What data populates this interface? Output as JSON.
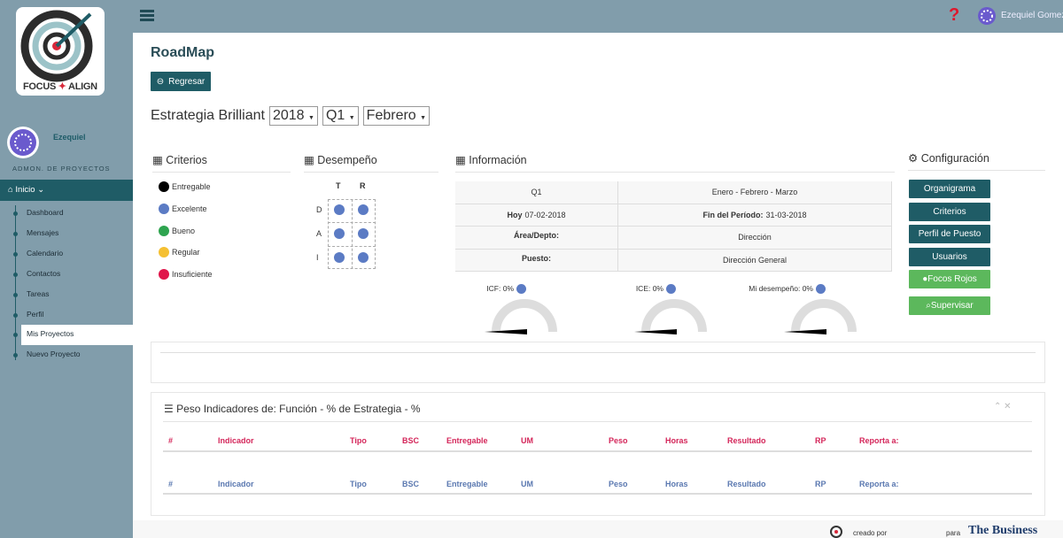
{
  "brand": {
    "left": "FOCUS",
    "right": "ALIGN"
  },
  "topbar": {
    "user": "Ezequiel Gomez"
  },
  "sidebar": {
    "user": "Ezequiel",
    "role": "ADMON. DE PROYECTOS",
    "section": "Inicio",
    "menu": [
      "Dashboard",
      "Mensajes",
      "Calendario",
      "Contactos",
      "Tareas",
      "Perfil",
      "Mis Proyectos",
      "Nuevo Proyecto"
    ],
    "active": 6
  },
  "page": {
    "title": "RoadMap",
    "back": "Regresar",
    "strategy": "Estrategia Brilliant",
    "year": "2018",
    "quarter": "Q1",
    "month": "Febrero"
  },
  "criterios": {
    "title": "Criterios",
    "items": [
      {
        "label": "Entregable",
        "color": "#000000"
      },
      {
        "label": "Excelente",
        "color": "#5b7bc4"
      },
      {
        "label": "Bueno",
        "color": "#2ea44f"
      },
      {
        "label": "Regular",
        "color": "#f5c032"
      },
      {
        "label": "Insuficiente",
        "color": "#e0164b"
      }
    ]
  },
  "desempeno": {
    "title": "Desempeño",
    "columns": [
      "T",
      "R"
    ],
    "rows": [
      "D",
      "A",
      "I"
    ],
    "color": "#5b7bc4"
  },
  "informacion": {
    "title": "Información",
    "rows": [
      [
        {
          "value": "Q1"
        },
        {
          "value": "Enero - Febrero - Marzo"
        }
      ],
      [
        {
          "label": "Hoy",
          "value": "07-02-2018"
        },
        {
          "label": "Fin del Período:",
          "value": "31-03-2018"
        }
      ],
      [
        {
          "label": "Área/Depto:"
        },
        {
          "value": "Dirección"
        }
      ],
      [
        {
          "label": "Puesto:"
        },
        {
          "value": "Dirección General"
        }
      ]
    ]
  },
  "gauges": [
    {
      "label": "ICF: 0%"
    },
    {
      "label": "ICE: 0%"
    },
    {
      "label": "Mi desempeño: 0%"
    }
  ],
  "configuracion": {
    "title": "Configuración",
    "buttons": [
      {
        "label": "Organigrama",
        "style": "primary"
      },
      {
        "label": "Criterios",
        "style": "primary"
      },
      {
        "label": "Perfil de Puesto",
        "style": "primary"
      },
      {
        "label": "Usuarios",
        "style": "primary"
      },
      {
        "label": "Focos Rojos",
        "style": "success"
      },
      {
        "label": "Supervisar",
        "style": "success"
      }
    ]
  },
  "indicadores": {
    "title": "Peso Indicadores de: Función - % de Estrategia - %",
    "columns": [
      "#",
      "Indicador",
      "Tipo",
      "BSC",
      "Entregable",
      "UM",
      "Peso",
      "Horas",
      "Resultado",
      "RP",
      "Reporta a:"
    ]
  },
  "footer": {
    "created": "creado por",
    "for": "para",
    "partner": "The Business"
  }
}
